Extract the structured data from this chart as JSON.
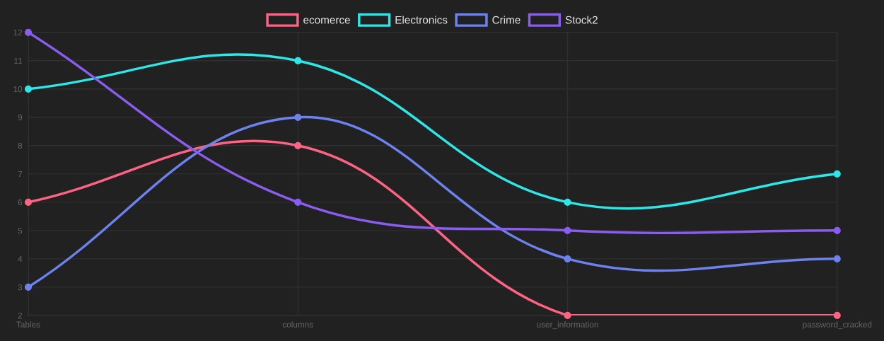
{
  "chart_data": {
    "type": "line",
    "categories": [
      "Tables",
      "columns",
      "user_information",
      "password_cracked"
    ],
    "series": [
      {
        "name": "ecomerce",
        "color": "#ff6384",
        "values": [
          6,
          8,
          2,
          2
        ]
      },
      {
        "name": "Electronics",
        "color": "#2ee6e6",
        "values": [
          10,
          11,
          6,
          7
        ]
      },
      {
        "name": "Crime",
        "color": "#6b82ef",
        "values": [
          3,
          9,
          4,
          4
        ]
      },
      {
        "name": "Stock2",
        "color": "#8a5cf0",
        "values": [
          12,
          6,
          5,
          5
        ]
      }
    ],
    "ylim": [
      2,
      12
    ],
    "yticks": [
      2,
      3,
      4,
      5,
      6,
      7,
      8,
      9,
      10,
      11,
      12
    ],
    "grid": true,
    "legend": "top",
    "marker": "circle",
    "line_style": "solid"
  }
}
